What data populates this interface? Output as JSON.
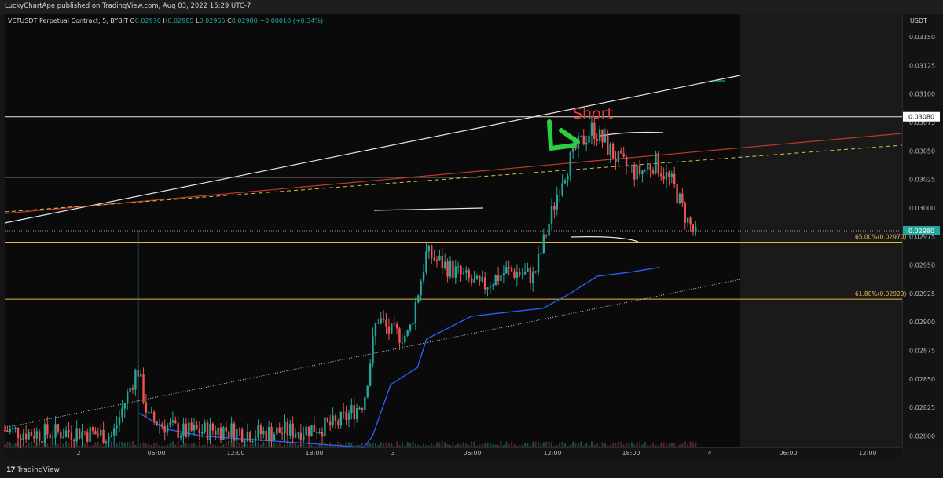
{
  "header": {
    "published": "LuckyChartApe published on TradingView.com, Aug 03, 2022 15:29 UTC-7"
  },
  "symbol": {
    "name": "VETUSDT Perpetual Contract, 5, BYBIT",
    "o_label": "O",
    "o": "0.02970",
    "h_label": "H",
    "h": "0.02985",
    "l_label": "L",
    "l": "0.02965",
    "c_label": "C",
    "c": "0.02980",
    "change": "+0.00010 (+0.34%)"
  },
  "currency": "USDT",
  "footer": {
    "brand": "TradingView"
  },
  "colors": {
    "up": "#26a69a",
    "down": "#ef5350",
    "vwap": "#2962ff",
    "fib": "#e8b44c",
    "resistance": "#c0392b",
    "dashed": "#d4c04a",
    "arrow": "#2ecc40",
    "short": "#e03b3b"
  },
  "annotations": {
    "short": "Short",
    "fib_65": "65.00%(0.02970)",
    "fib_618": "61.80%(0.02920)",
    "level_current": "0.02980",
    "level_top": "0.03080"
  },
  "chart_data": {
    "type": "candlestick",
    "symbol": "VETUSDT",
    "interval": "5",
    "ylim": [
      0.0279,
      0.0317
    ],
    "y_ticks": [
      "0.03150",
      "0.03125",
      "0.03100",
      "0.03075",
      "0.03050",
      "0.03025",
      "0.03000",
      "0.02975",
      "0.02950",
      "0.02925",
      "0.02900",
      "0.02875",
      "0.02850",
      "0.02825",
      "0.02800"
    ],
    "x_ticks": [
      "2",
      "06:00",
      "12:00",
      "18:00",
      "3",
      "06:00",
      "12:00",
      "18:00",
      "4",
      "06:00",
      "12:00"
    ],
    "horizontal_levels": [
      {
        "price": 0.0308,
        "label": "0.03080"
      },
      {
        "price": 0.03027
      },
      {
        "price": 0.0298,
        "label": "0.02980"
      },
      {
        "price": 0.0297,
        "label": "65.00%(0.02970)"
      },
      {
        "price": 0.0292,
        "label": "61.80%(0.02920)"
      }
    ],
    "price_path": [
      {
        "t": 0.0,
        "p": 0.02805
      },
      {
        "t": 0.04,
        "p": 0.02802
      },
      {
        "t": 0.08,
        "p": 0.02804
      },
      {
        "t": 0.12,
        "p": 0.028
      },
      {
        "t": 0.148,
        "p": 0.0286
      },
      {
        "t": 0.16,
        "p": 0.02815
      },
      {
        "t": 0.2,
        "p": 0.02803
      },
      {
        "t": 0.24,
        "p": 0.02806
      },
      {
        "t": 0.28,
        "p": 0.02802
      },
      {
        "t": 0.33,
        "p": 0.02805
      },
      {
        "t": 0.37,
        "p": 0.0281
      },
      {
        "t": 0.4,
        "p": 0.0283
      },
      {
        "t": 0.415,
        "p": 0.02905
      },
      {
        "t": 0.43,
        "p": 0.0289
      },
      {
        "t": 0.45,
        "p": 0.02888
      },
      {
        "t": 0.47,
        "p": 0.0296
      },
      {
        "t": 0.5,
        "p": 0.02945
      },
      {
        "t": 0.53,
        "p": 0.0293
      },
      {
        "t": 0.56,
        "p": 0.02945
      },
      {
        "t": 0.59,
        "p": 0.0294
      },
      {
        "t": 0.62,
        "p": 0.03025
      },
      {
        "t": 0.635,
        "p": 0.0305
      },
      {
        "t": 0.655,
        "p": 0.0307
      },
      {
        "t": 0.67,
        "p": 0.03055
      },
      {
        "t": 0.685,
        "p": 0.0304
      },
      {
        "t": 0.705,
        "p": 0.0303
      },
      {
        "t": 0.725,
        "p": 0.0304
      },
      {
        "t": 0.745,
        "p": 0.0302
      },
      {
        "t": 0.76,
        "p": 0.0299
      },
      {
        "t": 0.77,
        "p": 0.02975
      }
    ]
  }
}
